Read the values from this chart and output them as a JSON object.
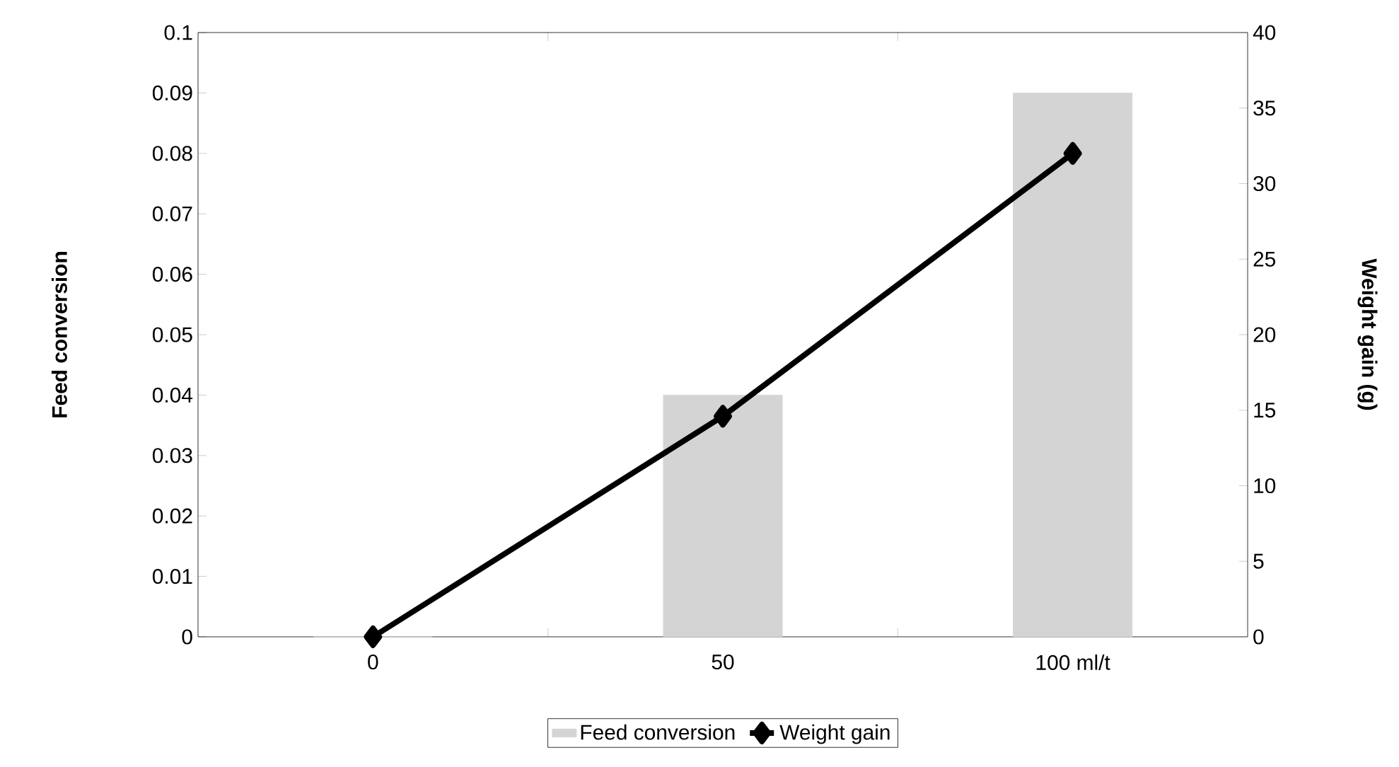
{
  "chart_data": {
    "type": "bar",
    "categories": [
      "0",
      "50",
      "100 ml/t"
    ],
    "ylabel": "Feed conversion",
    "y2label": "Weight gain (g)",
    "ylim": [
      0,
      0.1
    ],
    "yticks": [
      0,
      0.01,
      0.02,
      0.03,
      0.04,
      0.05,
      0.06,
      0.07,
      0.08,
      0.09,
      0.1
    ],
    "y2lim": [
      0,
      40
    ],
    "y2ticks": [
      0,
      5,
      10,
      15,
      20,
      25,
      30,
      35,
      40
    ],
    "legend": "bottom",
    "grid": false,
    "marker": "diamond",
    "series": [
      {
        "name": "Feed conversion",
        "color": "#d4d4d4",
        "values": [
          0,
          0.04,
          0.09
        ]
      },
      {
        "name": "Weight gain",
        "type": "line",
        "axis": "y2",
        "color": "#000000",
        "values": [
          0,
          14.6,
          32
        ]
      }
    ]
  }
}
